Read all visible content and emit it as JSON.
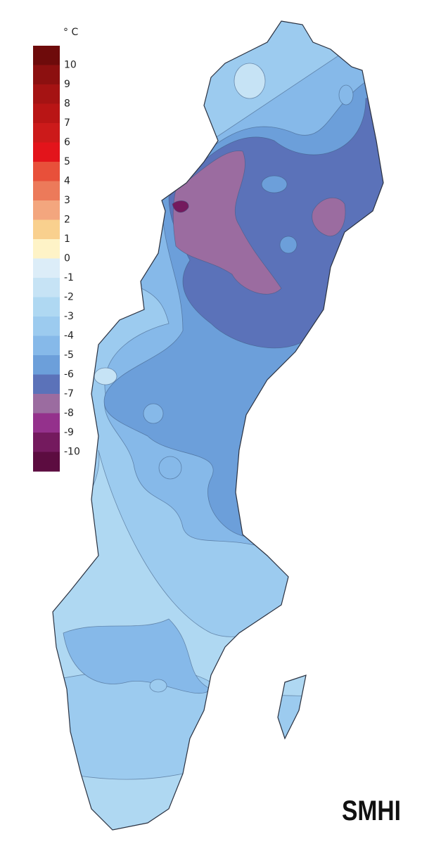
{
  "legend": {
    "unit": "° C",
    "ticks": [
      10,
      9,
      8,
      7,
      6,
      5,
      4,
      3,
      2,
      1,
      0,
      -1,
      -2,
      -3,
      -4,
      -5,
      -6,
      -7,
      -8,
      -9,
      -10
    ],
    "colors": [
      "#6e0b0b",
      "#8c1010",
      "#a51313",
      "#b91515",
      "#cc1a1a",
      "#e3141b",
      "#e8503a",
      "#ec7a5a",
      "#f3a67e",
      "#f9d08e",
      "#fef3c7",
      "#dcedf8",
      "#c6e3f5",
      "#afd8f2",
      "#9ccbef",
      "#86b9e9",
      "#6c9fda",
      "#5b72b9",
      "#9b6ca0",
      "#94318c",
      "#741a5e",
      "#5c0c40"
    ]
  },
  "logo": "SMHI"
}
